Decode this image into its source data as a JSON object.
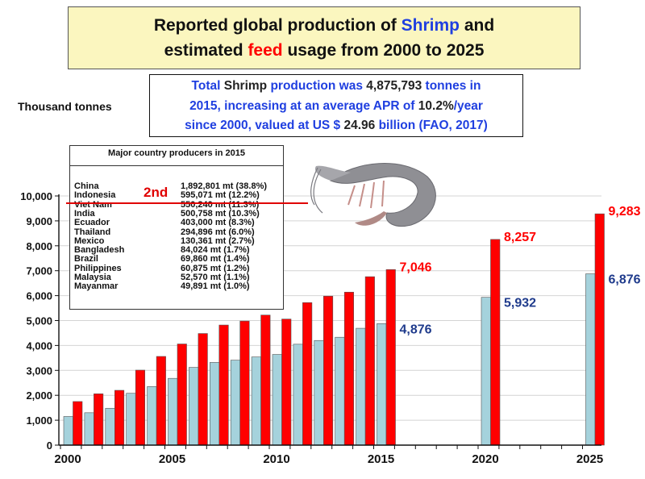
{
  "header": {
    "title_part1": "Reported global production of ",
    "title_shrimp": "Shrimp",
    "title_part2": " and",
    "title_part3": "estimated ",
    "title_feed": "feed",
    "title_part4": " usage from 2000 to 2025"
  },
  "info": {
    "t1": "Total",
    "t2": " Shrimp ",
    "t3": "production was ",
    "t4": "4,875,793",
    "t5": " tonnes in",
    "t6": "2015, increasing at an average APR of ",
    "t7": "10.2%",
    "t8": "/year",
    "t9": "since 2000, valued at US $ ",
    "t10": "24.96",
    "t11": " billion (FAO, 2017)"
  },
  "unit_label": "Thousand tonnes",
  "producers": {
    "title": "Major country producers in 2015",
    "rows": [
      {
        "country": "China",
        "value": "1,892,801 mt (38.8%)"
      },
      {
        "country": "Indonesia",
        "value": "595,071 mt (12.2%)"
      },
      {
        "country": "Viet Nam",
        "value": "550,240 mt (11.3%)"
      },
      {
        "country": "India",
        "value": "500,758 mt (10.3%)"
      },
      {
        "country": "Ecuador",
        "value": "403,000 mt (8.3%)"
      },
      {
        "country": "Thailand",
        "value": "294,896 mt (6.0%)"
      },
      {
        "country": "Mexico",
        "value": "130,361 mt (2.7%)"
      },
      {
        "country": "Bangladesh",
        "value": "84,024 mt (1.7%)"
      },
      {
        "country": "Brazil",
        "value": "69,860 mt (1.4%)"
      },
      {
        "country": "Philippines",
        "value": "60,875 mt (1.2%)"
      },
      {
        "country": "Malaysia",
        "value": "52,570 mt (1.1%)"
      },
      {
        "country": "Mayanmar",
        "value": "49,891 mt (1.0%)"
      }
    ],
    "highlight_label": "2nd"
  },
  "colors": {
    "production": "#a5d2dc",
    "feed": "#ff0000",
    "production_label": "#1f3b8c",
    "feed_label": "#ff0000"
  },
  "chart_data": {
    "type": "bar",
    "title": "Reported global production of Shrimp and estimated feed usage from 2000 to 2025",
    "ylabel": "Thousand tonnes",
    "ylim": [
      0,
      10000
    ],
    "yticks": [
      0,
      1000,
      2000,
      3000,
      4000,
      5000,
      6000,
      7000,
      8000,
      9000,
      10000
    ],
    "ytick_labels": [
      "0",
      "1,000",
      "2,000",
      "3,000",
      "4,000",
      "5,000",
      "6,000",
      "7,000",
      "8,000",
      "9,000",
      "10,000"
    ],
    "xtick_labels": [
      "2000",
      "2005",
      "2010",
      "2015",
      "2020",
      "2025"
    ],
    "categories": [
      "2000",
      "2001",
      "2002",
      "2003",
      "2004",
      "2005",
      "2006",
      "2007",
      "2008",
      "2009",
      "2010",
      "2011",
      "2012",
      "2013",
      "2014",
      "2015",
      "2020",
      "2025"
    ],
    "series": [
      {
        "name": "Shrimp production",
        "values": [
          1150,
          1300,
          1480,
          2080,
          2350,
          2680,
          3120,
          3320,
          3410,
          3540,
          3640,
          4050,
          4200,
          4330,
          4690,
          4876,
          5932,
          6876
        ]
      },
      {
        "name": "Estimated feed usage",
        "values": [
          1750,
          2060,
          2200,
          3010,
          3560,
          4060,
          4480,
          4820,
          4980,
          5220,
          5060,
          5720,
          5980,
          6140,
          6760,
          7046,
          8257,
          9283
        ]
      }
    ],
    "data_labels": {
      "2015": {
        "production": "4,876",
        "feed": "7,046"
      },
      "2020": {
        "production": "5,932",
        "feed": "8,257"
      },
      "2025": {
        "production": "6,876",
        "feed": "9,283"
      }
    }
  }
}
